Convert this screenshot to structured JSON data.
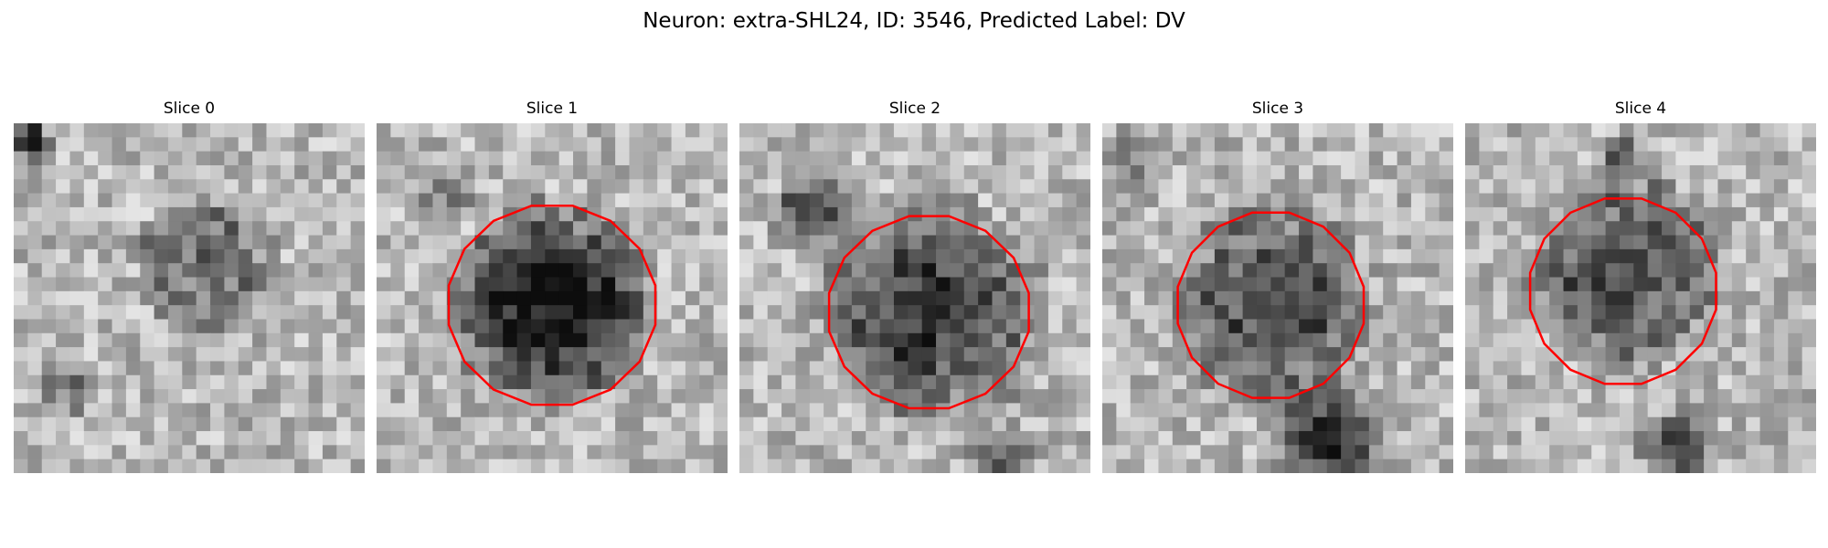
{
  "figure": {
    "title": "Neuron: extra-SHL24, ID: 3546, Predicted Label: DV"
  },
  "panels": [
    {
      "title": "Slice 0",
      "has_contour": false
    },
    {
      "title": "Slice 1",
      "has_contour": true
    },
    {
      "title": "Slice 2",
      "has_contour": true
    },
    {
      "title": "Slice 3",
      "has_contour": true
    },
    {
      "title": "Slice 4",
      "has_contour": true
    }
  ],
  "colors": {
    "contour": "#ff0000",
    "background": "#ffffff"
  },
  "image": {
    "colormap": "grayscale"
  }
}
